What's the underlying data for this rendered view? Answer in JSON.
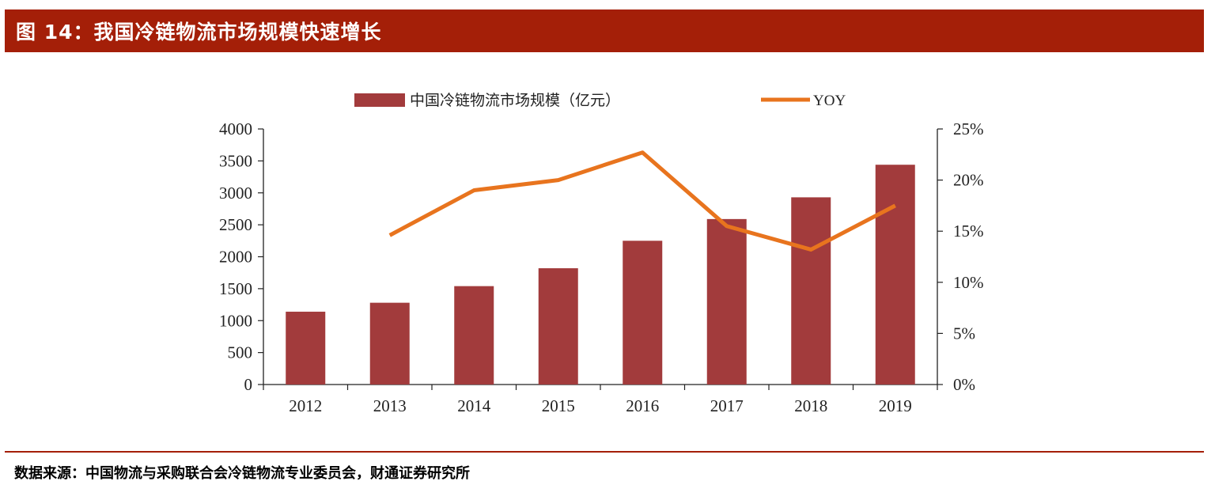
{
  "header": {
    "title": "图 14：我国冷链物流市场规模快速增长"
  },
  "chart_data": {
    "type": "bar",
    "title": "",
    "categories": [
      "2012",
      "2013",
      "2014",
      "2015",
      "2016",
      "2017",
      "2018",
      "2019"
    ],
    "series": [
      {
        "name": "中国冷链物流市场规模（亿元）",
        "type": "bar",
        "axis": "left",
        "values": [
          1140,
          1280,
          1540,
          1820,
          2250,
          2590,
          2930,
          3440
        ]
      },
      {
        "name": "YOY",
        "type": "line",
        "axis": "right",
        "values": [
          null,
          0.146,
          0.19,
          0.2,
          0.227,
          0.155,
          0.132,
          0.175
        ]
      }
    ],
    "y_left": {
      "min": 0,
      "max": 4000,
      "ticks": [
        "0",
        "500",
        "1000",
        "1500",
        "2000",
        "2500",
        "3000",
        "3500",
        "4000"
      ]
    },
    "y_right": {
      "min": 0,
      "max": 0.25,
      "ticks": [
        "0%",
        "5%",
        "10%",
        "15%",
        "20%",
        "25%"
      ]
    },
    "legend_position": "top",
    "grid": false
  },
  "footer": {
    "source": "数据来源：中国物流与采购联合会冷链物流专业委员会，财通证券研究所"
  },
  "colors": {
    "title_bar": "#a41f08",
    "bar": "#a23b3c",
    "line": "#e8741e",
    "axis": "#222222"
  }
}
